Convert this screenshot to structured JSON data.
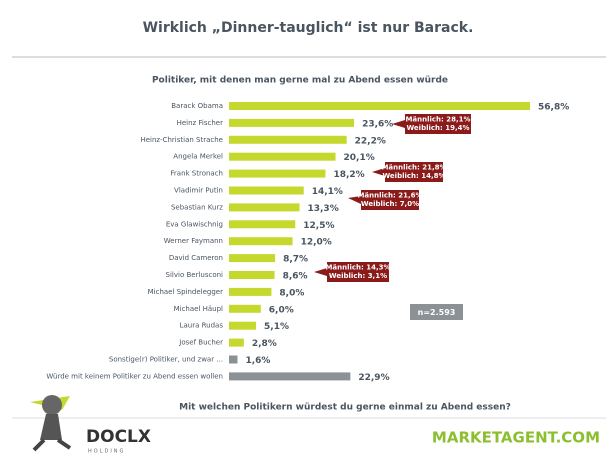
{
  "chart_data": {
    "type": "bar",
    "orientation": "horizontal",
    "title": "Wirklich „Dinner-tauglich“ ist nur Barack.",
    "subtitle": "Politiker, mit denen man gerne mal zu Abend essen würde",
    "question": "Mit welchen Politikern würdest du gerne einmal zu Abend essen?",
    "categories": [
      "Barack Obama",
      "Heinz Fischer",
      "Heinz-Christian Strache",
      "Angela Merkel",
      "Frank Stronach",
      "Vladimir Putin",
      "Sebastian Kurz",
      "Eva Glawischnig",
      "Werner Faymann",
      "David Cameron",
      "Silvio Berlusconi",
      "Michael Spindelegger",
      "Michael Häupl",
      "Laura Rudas",
      "Josef Bucher",
      "Sonstige(r) Politiker, und zwar ...",
      "Würde mit keinem Politiker zu Abend essen wollen"
    ],
    "values": [
      56.8,
      23.6,
      22.2,
      20.1,
      18.2,
      14.1,
      13.3,
      12.5,
      12.0,
      8.7,
      8.6,
      8.0,
      6.0,
      5.1,
      2.8,
      1.6,
      22.9
    ],
    "value_labels": [
      "56,8%",
      "23,6%",
      "22,2%",
      "20,1%",
      "18,2%",
      "14,1%",
      "13,3%",
      "12,5%",
      "12,0%",
      "8,7%",
      "8,6%",
      "8,0%",
      "6,0%",
      "5,1%",
      "2,8%",
      "1,6%",
      "22,9%"
    ],
    "colors": [
      "#c5d82e",
      "#c5d82e",
      "#c5d82e",
      "#c5d82e",
      "#c5d82e",
      "#c5d82e",
      "#c5d82e",
      "#c5d82e",
      "#c5d82e",
      "#c5d82e",
      "#c5d82e",
      "#c5d82e",
      "#c5d82e",
      "#c5d82e",
      "#c5d82e",
      "#8c9196",
      "#8c9196"
    ],
    "xlim": [
      0,
      60
    ],
    "annotations": [
      [
        "Männlich: 28,1%",
        "Weiblich: 19,4%"
      ],
      [
        "Männlich: 21,8%",
        "Weiblich: 14,8%"
      ],
      [
        "Männlich: 21,6%",
        "Weiblich: 7,0%"
      ],
      [
        "Männlich: 14,3%",
        "Weiblich: 3,1%"
      ]
    ],
    "sample_note": "n=2.593",
    "logo_left": "DOCLX",
    "logo_left_sub": "HOLDING",
    "logo_right": "MARKETAGENT.COM"
  }
}
